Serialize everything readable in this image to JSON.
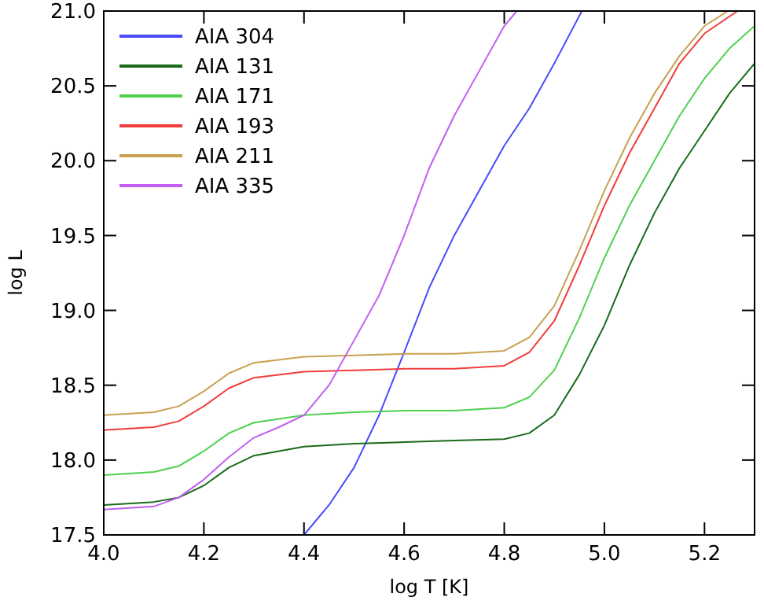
{
  "chart_data": {
    "type": "line",
    "xlabel": "log T [K]",
    "ylabel": "log L",
    "xlim": [
      4.0,
      5.3
    ],
    "ylim": [
      17.5,
      21.0
    ],
    "xticks": [
      {
        "value": 4.0,
        "label": "4.0"
      },
      {
        "value": 4.2,
        "label": "4.2"
      },
      {
        "value": 4.4,
        "label": "4.4"
      },
      {
        "value": 4.6,
        "label": "4.6"
      },
      {
        "value": 4.8,
        "label": "4.8"
      },
      {
        "value": 5.0,
        "label": "5.0"
      },
      {
        "value": 5.2,
        "label": "5.2"
      }
    ],
    "yticks": [
      17.5,
      {
        "value": 18.0,
        "label": "18.0"
      },
      18.5,
      {
        "value": 19.0,
        "label": "19.0"
      },
      19.5,
      {
        "value": 20.0,
        "label": "20.0"
      },
      20.5,
      {
        "value": 21.0,
        "label": "21.0"
      }
    ],
    "grid": false,
    "legend": "top left",
    "marker": "none",
    "line_style": "solid",
    "series": [
      {
        "name": "AIA 304",
        "color": "#4a4aff",
        "x": [
          4.4,
          4.45,
          4.5,
          4.55,
          4.6,
          4.65,
          4.7,
          4.75,
          4.8,
          4.85,
          4.9,
          4.955
        ],
        "values": [
          17.5,
          17.7,
          17.95,
          18.3,
          18.72,
          19.15,
          19.5,
          19.8,
          20.1,
          20.35,
          20.65,
          21.0
        ]
      },
      {
        "name": "AIA 131",
        "color": "#1a6b1a",
        "x": [
          4.0,
          4.1,
          4.15,
          4.2,
          4.25,
          4.3,
          4.4,
          4.5,
          4.6,
          4.7,
          4.8,
          4.85,
          4.9,
          4.95,
          5.0,
          5.05,
          5.1,
          5.15,
          5.2,
          5.25,
          5.3
        ],
        "values": [
          17.7,
          17.72,
          17.75,
          17.83,
          17.95,
          18.03,
          18.09,
          18.11,
          18.12,
          18.13,
          18.14,
          18.18,
          18.3,
          18.57,
          18.9,
          19.3,
          19.65,
          19.95,
          20.2,
          20.45,
          20.65
        ]
      },
      {
        "name": "AIA 171",
        "color": "#4fd04f",
        "x": [
          4.0,
          4.1,
          4.15,
          4.2,
          4.25,
          4.3,
          4.4,
          4.5,
          4.6,
          4.7,
          4.8,
          4.85,
          4.9,
          4.95,
          5.0,
          5.05,
          5.1,
          5.15,
          5.2,
          5.25,
          5.3
        ],
        "values": [
          17.9,
          17.92,
          17.96,
          18.06,
          18.18,
          18.25,
          18.3,
          18.32,
          18.33,
          18.33,
          18.35,
          18.42,
          18.6,
          18.95,
          19.35,
          19.7,
          20.0,
          20.3,
          20.55,
          20.75,
          20.9
        ]
      },
      {
        "name": "AIA 193",
        "color": "#f03c3c",
        "x": [
          4.0,
          4.1,
          4.15,
          4.2,
          4.25,
          4.3,
          4.4,
          4.5,
          4.6,
          4.7,
          4.8,
          4.85,
          4.9,
          4.95,
          5.0,
          5.05,
          5.1,
          5.15,
          5.2,
          5.266
        ],
        "values": [
          18.2,
          18.22,
          18.26,
          18.36,
          18.48,
          18.55,
          18.59,
          18.6,
          18.61,
          18.61,
          18.63,
          18.72,
          18.93,
          19.3,
          19.7,
          20.05,
          20.35,
          20.65,
          20.85,
          21.0
        ]
      },
      {
        "name": "AIA 211",
        "color": "#c8a050",
        "x": [
          4.0,
          4.1,
          4.15,
          4.2,
          4.25,
          4.3,
          4.4,
          4.5,
          4.6,
          4.7,
          4.8,
          4.85,
          4.9,
          4.95,
          5.0,
          5.05,
          5.1,
          5.15,
          5.2,
          5.247
        ],
        "values": [
          18.3,
          18.32,
          18.36,
          18.46,
          18.58,
          18.65,
          18.69,
          18.7,
          18.71,
          18.71,
          18.73,
          18.82,
          19.03,
          19.4,
          19.8,
          20.15,
          20.45,
          20.7,
          20.9,
          21.0
        ]
      },
      {
        "name": "AIA 335",
        "color": "#c060f0",
        "x": [
          4.0,
          4.1,
          4.15,
          4.2,
          4.25,
          4.3,
          4.35,
          4.4,
          4.45,
          4.5,
          4.55,
          4.6,
          4.65,
          4.7,
          4.75,
          4.8,
          4.825
        ],
        "values": [
          17.67,
          17.69,
          17.75,
          17.87,
          18.02,
          18.15,
          18.22,
          18.3,
          18.5,
          18.8,
          19.1,
          19.5,
          19.95,
          20.3,
          20.6,
          20.9,
          21.0
        ]
      }
    ]
  }
}
